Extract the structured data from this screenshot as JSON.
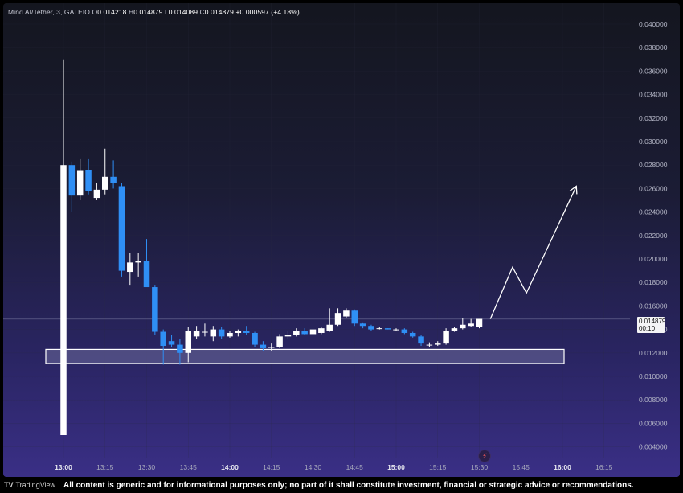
{
  "legend": {
    "symbol": "Mind AI/Tether, 3, GATEIO",
    "open_label": "O",
    "open": "0.014218",
    "high_label": "H",
    "high": "0.014879",
    "low_label": "L",
    "low": "0.014089",
    "close_label": "C",
    "close": "0.014879",
    "change": "+0.000597 (+4.18%)"
  },
  "price_tag": {
    "price": "0.014879",
    "countdown": "00:10"
  },
  "footer": {
    "brand": "TradingView",
    "disclaimer": "All content is generic and for informational purposes only; no part of it shall constitute investment, financial or strategic advice or recommendations."
  },
  "colors": {
    "up": "#ffffff",
    "down": "#2f8ff5",
    "box": "#5b588c",
    "grid": "#2a2c40"
  },
  "chart_data": {
    "type": "candlestick",
    "interval_minutes": 3,
    "x_ticks": [
      "13:00",
      "13:15",
      "13:30",
      "13:45",
      "14:00",
      "14:15",
      "14:30",
      "14:45",
      "15:00",
      "15:15",
      "15:30",
      "15:45",
      "16:00",
      "16:15"
    ],
    "x_ticks_bold": [
      "13:00",
      "14:00",
      "15:00",
      "16:00"
    ],
    "y_ticks": [
      "0.040000",
      "0.038000",
      "0.036000",
      "0.034000",
      "0.032000",
      "0.030000",
      "0.028000",
      "0.026000",
      "0.024000",
      "0.022000",
      "0.020000",
      "0.018000",
      "0.016000",
      "0.014000",
      "0.012000",
      "0.010000",
      "0.008000",
      "0.006000",
      "0.004000"
    ],
    "ylim": [
      0.003,
      0.0415
    ],
    "last_price": 0.014879,
    "support_zone": {
      "from": 0.0111,
      "to": 0.0123
    },
    "projection": [
      {
        "time": "15:34",
        "price": 0.0149
      },
      {
        "time": "15:42",
        "price": 0.0193
      },
      {
        "time": "15:47",
        "price": 0.0171
      },
      {
        "time": "16:05",
        "price": 0.0262
      }
    ],
    "candles": [
      {
        "time": "13:00",
        "o": 0.005,
        "h": 0.037,
        "l": 0.005,
        "c": 0.028
      },
      {
        "time": "13:03",
        "o": 0.028,
        "h": 0.0283,
        "l": 0.024,
        "c": 0.0254
      },
      {
        "time": "13:06",
        "o": 0.0254,
        "h": 0.0285,
        "l": 0.025,
        "c": 0.0275
      },
      {
        "time": "13:09",
        "o": 0.0276,
        "h": 0.0285,
        "l": 0.0255,
        "c": 0.0258
      },
      {
        "time": "13:12",
        "o": 0.0252,
        "h": 0.0265,
        "l": 0.025,
        "c": 0.0259
      },
      {
        "time": "13:15",
        "o": 0.0259,
        "h": 0.0294,
        "l": 0.0255,
        "c": 0.027
      },
      {
        "time": "13:18",
        "o": 0.027,
        "h": 0.0284,
        "l": 0.026,
        "c": 0.0265
      },
      {
        "time": "13:21",
        "o": 0.0262,
        "h": 0.0265,
        "l": 0.0185,
        "c": 0.019
      },
      {
        "time": "13:24",
        "o": 0.0189,
        "h": 0.0205,
        "l": 0.0178,
        "c": 0.0197
      },
      {
        "time": "13:27",
        "o": 0.0197,
        "h": 0.0205,
        "l": 0.0185,
        "c": 0.0198
      },
      {
        "time": "13:30",
        "o": 0.0198,
        "h": 0.0217,
        "l": 0.0176,
        "c": 0.0176
      },
      {
        "time": "13:33",
        "o": 0.0176,
        "h": 0.0178,
        "l": 0.0135,
        "c": 0.0138
      },
      {
        "time": "13:36",
        "o": 0.0138,
        "h": 0.014,
        "l": 0.011,
        "c": 0.0126
      },
      {
        "time": "13:39",
        "o": 0.013,
        "h": 0.0135,
        "l": 0.0125,
        "c": 0.0127
      },
      {
        "time": "13:42",
        "o": 0.0127,
        "h": 0.0132,
        "l": 0.011,
        "c": 0.012
      },
      {
        "time": "13:45",
        "o": 0.012,
        "h": 0.0142,
        "l": 0.0112,
        "c": 0.0139
      },
      {
        "time": "13:48",
        "o": 0.0134,
        "h": 0.0143,
        "l": 0.0132,
        "c": 0.0139
      },
      {
        "time": "13:51",
        "o": 0.0138,
        "h": 0.0145,
        "l": 0.0134,
        "c": 0.0138
      },
      {
        "time": "13:54",
        "o": 0.0134,
        "h": 0.0143,
        "l": 0.013,
        "c": 0.014
      },
      {
        "time": "13:57",
        "o": 0.014,
        "h": 0.0142,
        "l": 0.0132,
        "c": 0.0134
      },
      {
        "time": "14:00",
        "o": 0.0134,
        "h": 0.0139,
        "l": 0.0133,
        "c": 0.0137
      },
      {
        "time": "14:03",
        "o": 0.0137,
        "h": 0.014,
        "l": 0.0134,
        "c": 0.0139
      },
      {
        "time": "14:06",
        "o": 0.0139,
        "h": 0.0143,
        "l": 0.0135,
        "c": 0.0137
      },
      {
        "time": "14:09",
        "o": 0.0137,
        "h": 0.0138,
        "l": 0.0125,
        "c": 0.0127
      },
      {
        "time": "14:12",
        "o": 0.0127,
        "h": 0.013,
        "l": 0.0122,
        "c": 0.0124
      },
      {
        "time": "14:15",
        "o": 0.0125,
        "h": 0.0128,
        "l": 0.0122,
        "c": 0.0125
      },
      {
        "time": "14:18",
        "o": 0.0125,
        "h": 0.0136,
        "l": 0.0124,
        "c": 0.0134
      },
      {
        "time": "14:21",
        "o": 0.0134,
        "h": 0.0139,
        "l": 0.0132,
        "c": 0.0135
      },
      {
        "time": "14:24",
        "o": 0.0135,
        "h": 0.0141,
        "l": 0.0134,
        "c": 0.0139
      },
      {
        "time": "14:27",
        "o": 0.0139,
        "h": 0.0141,
        "l": 0.0135,
        "c": 0.0136
      },
      {
        "time": "14:30",
        "o": 0.0136,
        "h": 0.0141,
        "l": 0.0135,
        "c": 0.014
      },
      {
        "time": "14:33",
        "o": 0.0137,
        "h": 0.0142,
        "l": 0.0136,
        "c": 0.0141
      },
      {
        "time": "14:36",
        "o": 0.0139,
        "h": 0.0158,
        "l": 0.0138,
        "c": 0.0144
      },
      {
        "time": "14:39",
        "o": 0.0144,
        "h": 0.0158,
        "l": 0.0143,
        "c": 0.0154
      },
      {
        "time": "14:42",
        "o": 0.0151,
        "h": 0.0158,
        "l": 0.015,
        "c": 0.0156
      },
      {
        "time": "14:45",
        "o": 0.0156,
        "h": 0.0157,
        "l": 0.0143,
        "c": 0.0145
      },
      {
        "time": "14:48",
        "o": 0.0145,
        "h": 0.0146,
        "l": 0.0141,
        "c": 0.0143
      },
      {
        "time": "14:51",
        "o": 0.0143,
        "h": 0.0144,
        "l": 0.0139,
        "c": 0.014
      },
      {
        "time": "14:54",
        "o": 0.0141,
        "h": 0.0142,
        "l": 0.014,
        "c": 0.0141
      },
      {
        "time": "14:57",
        "o": 0.0141,
        "h": 0.0141,
        "l": 0.014,
        "c": 0.014
      },
      {
        "time": "15:00",
        "o": 0.014,
        "h": 0.0141,
        "l": 0.0139,
        "c": 0.014
      },
      {
        "time": "15:03",
        "o": 0.014,
        "h": 0.0141,
        "l": 0.0136,
        "c": 0.0137
      },
      {
        "time": "15:06",
        "o": 0.0137,
        "h": 0.0138,
        "l": 0.0133,
        "c": 0.0134
      },
      {
        "time": "15:09",
        "o": 0.0134,
        "h": 0.0135,
        "l": 0.0126,
        "c": 0.0128
      },
      {
        "time": "15:12",
        "o": 0.0127,
        "h": 0.0129,
        "l": 0.0125,
        "c": 0.0127
      },
      {
        "time": "15:15",
        "o": 0.0127,
        "h": 0.013,
        "l": 0.0126,
        "c": 0.0128
      },
      {
        "time": "15:18",
        "o": 0.0128,
        "h": 0.0141,
        "l": 0.0127,
        "c": 0.0139
      },
      {
        "time": "15:21",
        "o": 0.0139,
        "h": 0.0142,
        "l": 0.0138,
        "c": 0.0141
      },
      {
        "time": "15:24",
        "o": 0.0141,
        "h": 0.015,
        "l": 0.014,
        "c": 0.0144
      },
      {
        "time": "15:27",
        "o": 0.0143,
        "h": 0.0149,
        "l": 0.0142,
        "c": 0.0145
      },
      {
        "time": "15:30",
        "o": 0.0142,
        "h": 0.0149,
        "l": 0.0141,
        "c": 0.0149
      }
    ]
  }
}
